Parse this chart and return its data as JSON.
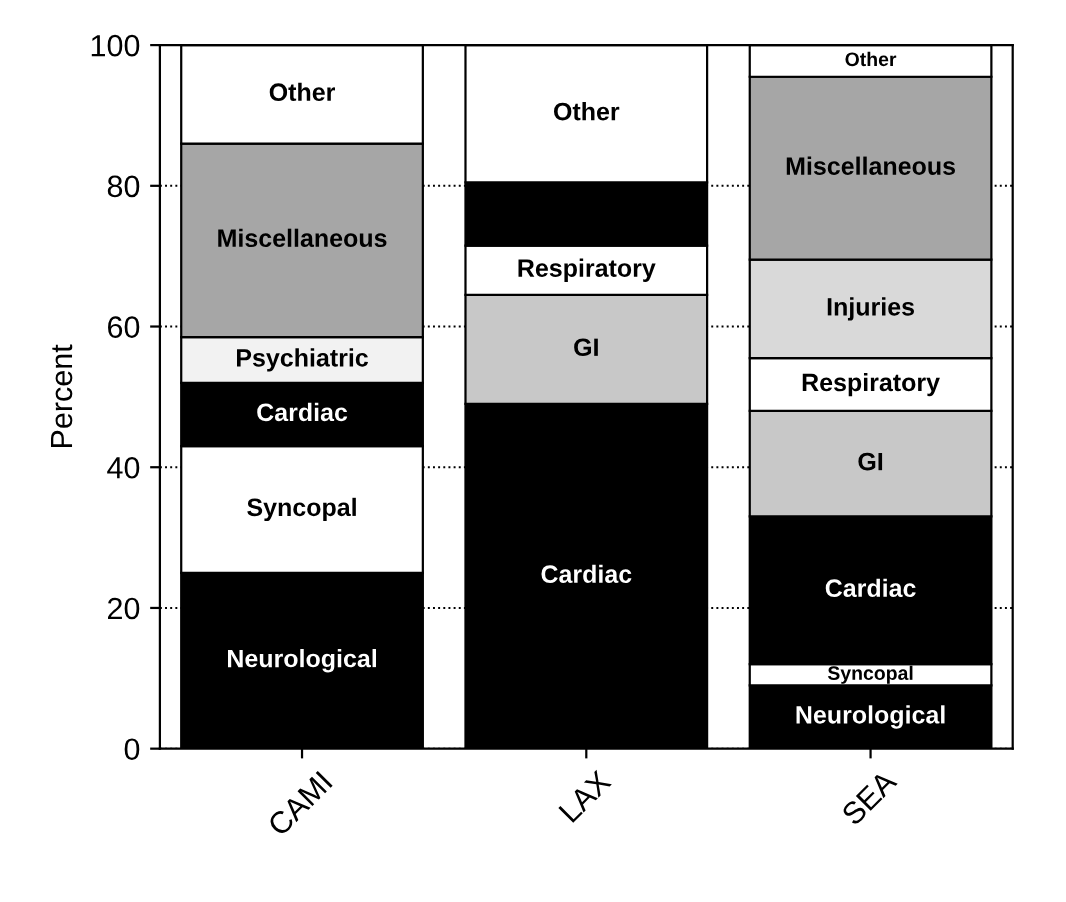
{
  "chart_data": {
    "type": "bar",
    "stacked": true,
    "ylabel": "Percent",
    "categories": [
      "CAMI",
      "LAX",
      "SEA"
    ],
    "series": [
      {
        "name": "Neurological",
        "color": "#000000",
        "values": [
          25,
          null,
          9
        ]
      },
      {
        "name": "Syncopal",
        "color": "#ffffff",
        "values": [
          18,
          null,
          3
        ]
      },
      {
        "name": "Cardiac",
        "color": "#000000",
        "values": [
          9,
          49,
          21
        ]
      },
      {
        "name": "Psychiatric",
        "color": "#f2f2f2",
        "values": [
          6.5,
          null,
          null
        ]
      },
      {
        "name": "GI",
        "color": "#c8c8c8",
        "values": [
          null,
          15.5,
          15
        ]
      },
      {
        "name": "Respiratory",
        "color": "#ffffff",
        "values": [
          null,
          7,
          7.5
        ]
      },
      {
        "color": "#000000",
        "values": [
          null,
          9,
          null
        ]
      },
      {
        "name": "Injuries",
        "color": "#d9d9d9",
        "values": [
          null,
          null,
          14
        ]
      },
      {
        "name": "Miscellaneous",
        "color": "#a6a6a6",
        "values": [
          27.5,
          null,
          26
        ]
      },
      {
        "name": "Other",
        "color": "#ffffff",
        "values": [
          14,
          19.5,
          4.5
        ]
      }
    ],
    "ylim": [
      0,
      100
    ],
    "yticks": [
      0,
      20,
      40,
      60,
      80,
      100
    ],
    "grid": "y",
    "legend": false
  }
}
